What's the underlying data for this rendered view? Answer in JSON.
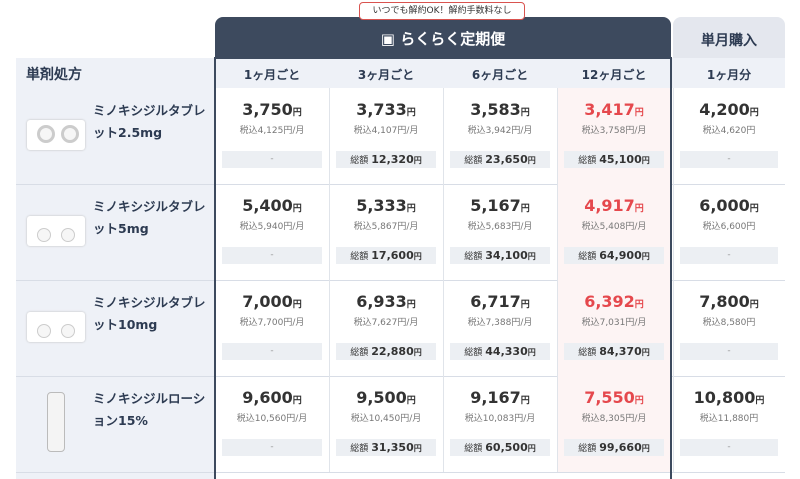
{
  "header": {
    "badge": "いつでも解約OK！解約手数料なし",
    "plan_title": "らくらく定期便",
    "single_title": "単月購入",
    "row_header": "単剤処方",
    "columns": [
      "1ヶ月ごと",
      "3ヶ月ごと",
      "6ヶ月ごと",
      "12ヶ月ごと",
      "1ヶ月分"
    ]
  },
  "yen": "円",
  "total_label": "総額",
  "rows": [
    {
      "name": "ミノキシジルタブレット2.5mg",
      "cells": [
        {
          "price": "3,750",
          "tax": "税込4,125円/月",
          "total": "-"
        },
        {
          "price": "3,733",
          "tax": "税込4,107円/月",
          "total": "12,320"
        },
        {
          "price": "3,583",
          "tax": "税込3,942円/月",
          "total": "23,650"
        },
        {
          "price": "3,417",
          "tax": "税込3,758円/月",
          "total": "45,100"
        },
        {
          "price": "4,200",
          "tax": "税込4,620円",
          "total": "-"
        }
      ]
    },
    {
      "name": "ミノキシジルタブレット5mg",
      "cells": [
        {
          "price": "5,400",
          "tax": "税込5,940円/月",
          "total": "-"
        },
        {
          "price": "5,333",
          "tax": "税込5,867円/月",
          "total": "17,600"
        },
        {
          "price": "5,167",
          "tax": "税込5,683円/月",
          "total": "34,100"
        },
        {
          "price": "4,917",
          "tax": "税込5,408円/月",
          "total": "64,900"
        },
        {
          "price": "6,000",
          "tax": "税込6,600円",
          "total": "-"
        }
      ]
    },
    {
      "name": "ミノキシジルタブレット10mg",
      "cells": [
        {
          "price": "7,000",
          "tax": "税込7,700円/月",
          "total": "-"
        },
        {
          "price": "6,933",
          "tax": "税込7,627円/月",
          "total": "22,880"
        },
        {
          "price": "6,717",
          "tax": "税込7,388円/月",
          "total": "44,330"
        },
        {
          "price": "6,392",
          "tax": "税込7,031円/月",
          "total": "84,370"
        },
        {
          "price": "7,800",
          "tax": "税込8,580円",
          "total": "-"
        }
      ]
    },
    {
      "name": "ミノキシジルローション15%",
      "cells": [
        {
          "price": "9,600",
          "tax": "税込10,560円/月",
          "total": "-"
        },
        {
          "price": "9,500",
          "tax": "税込10,450円/月",
          "total": "31,350"
        },
        {
          "price": "9,167",
          "tax": "税込10,083円/月",
          "total": "60,500"
        },
        {
          "price": "7,550",
          "tax": "税込8,305円/月",
          "total": "99,660"
        },
        {
          "price": "10,800",
          "tax": "税込11,880円",
          "total": "-"
        }
      ]
    }
  ]
}
